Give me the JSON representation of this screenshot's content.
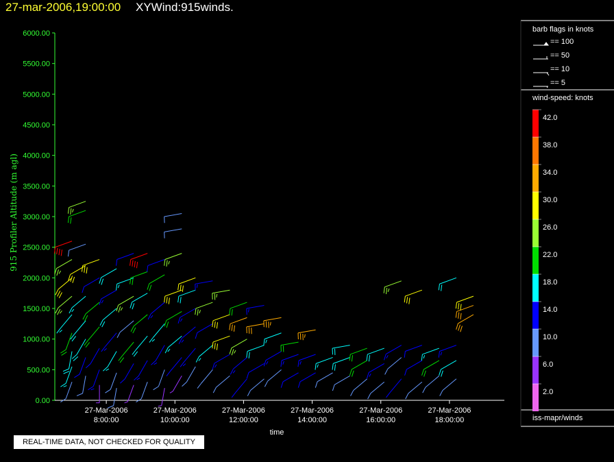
{
  "header": {
    "datetime": "27-mar-2006,19:00:00",
    "product": "XYWind:915winds."
  },
  "notice": "REAL-TIME DATA, NOT CHECKED FOR QUALITY",
  "legend": {
    "barb_title": "barb flags in knots",
    "barb_items": [
      "== 100",
      "== 50",
      "== 10",
      "== 5"
    ],
    "colorbar_title": "wind-speed: knots",
    "colorbar_labels": [
      "42.0",
      "38.0",
      "34.0",
      "30.0",
      "26.0",
      "22.0",
      "18.0",
      "14.0",
      "10.0",
      "6.0",
      "2.0"
    ],
    "colorbar_colors": [
      "#ff0000",
      "#ff7700",
      "#ffaa00",
      "#ffff00",
      "#99ff33",
      "#00dd00",
      "#00ffff",
      "#0000ff",
      "#6699ff",
      "#9933ff",
      "#ee66ee"
    ],
    "source": "iss-mapr/winds"
  },
  "chart_data": {
    "type": "scatter",
    "ylabel": "915 Profiler Altitude (m agl)",
    "xlabel": "time",
    "ylim": [
      0,
      6000
    ],
    "xlim": [
      6.5,
      19.6
    ],
    "yticks": [
      "0.00",
      "500.00",
      "1000.00",
      "1500.00",
      "2000.00",
      "2500.00",
      "3000.00",
      "3500.00",
      "4000.00",
      "4500.00",
      "5000.00",
      "5500.00",
      "6000.00"
    ],
    "xticks": [
      {
        "x": 8,
        "date": "27-Mar-2006",
        "time": "8:00:00"
      },
      {
        "x": 10,
        "date": "27-Mar-2006",
        "time": "10:00:00"
      },
      {
        "x": 12,
        "date": "27-Mar-2006",
        "time": "12:00:00"
      },
      {
        "x": 14,
        "date": "27-Mar-2006",
        "time": "14:00:00"
      },
      {
        "x": 16,
        "date": "27-Mar-2006",
        "time": "16:00:00"
      },
      {
        "x": 18,
        "date": "27-Mar-2006",
        "time": "18:00:00"
      }
    ],
    "profiles": [
      {
        "time": 7.0,
        "obs": [
          [
            300,
            10,
            200
          ],
          [
            550,
            16,
            200
          ],
          [
            800,
            18,
            190
          ],
          [
            1100,
            20,
            200
          ],
          [
            1400,
            16,
            220
          ],
          [
            1700,
            24,
            230
          ],
          [
            2000,
            30,
            230
          ],
          [
            2300,
            26,
            240
          ],
          [
            2600,
            40,
            250
          ]
        ]
      },
      {
        "time": 7.4,
        "obs": [
          [
            400,
            8,
            190
          ],
          [
            700,
            12,
            200
          ],
          [
            1000,
            18,
            210
          ],
          [
            1300,
            18,
            220
          ],
          [
            1700,
            16,
            230
          ],
          [
            2200,
            28,
            240
          ],
          [
            2550,
            10,
            250
          ],
          [
            3100,
            22,
            250
          ],
          [
            3250,
            24,
            250
          ]
        ]
      },
      {
        "time": 7.8,
        "obs": [
          [
            250,
            6,
            180
          ],
          [
            500,
            14,
            200
          ],
          [
            850,
            12,
            210
          ],
          [
            1200,
            20,
            220
          ],
          [
            1600,
            20,
            230
          ],
          [
            2000,
            12,
            240
          ],
          [
            2300,
            28,
            250
          ]
        ]
      },
      {
        "time": 8.3,
        "obs": [
          [
            200,
            8,
            190
          ],
          [
            450,
            10,
            200
          ],
          [
            800,
            16,
            210
          ],
          [
            1100,
            14,
            220
          ],
          [
            1500,
            18,
            230
          ],
          [
            1800,
            14,
            240
          ],
          [
            2150,
            18,
            240
          ]
        ]
      },
      {
        "time": 8.8,
        "obs": [
          [
            250,
            6,
            200
          ],
          [
            600,
            12,
            210
          ],
          [
            950,
            20,
            220
          ],
          [
            1300,
            10,
            230
          ],
          [
            1700,
            24,
            240
          ],
          [
            2000,
            16,
            250
          ],
          [
            2400,
            12,
            250
          ]
        ]
      },
      {
        "time": 9.2,
        "obs": [
          [
            300,
            8,
            200
          ],
          [
            650,
            14,
            210
          ],
          [
            1050,
            18,
            220
          ],
          [
            1400,
            22,
            230
          ],
          [
            1750,
            18,
            240
          ],
          [
            2100,
            20,
            250
          ],
          [
            2400,
            40,
            250
          ]
        ]
      },
      {
        "time": 9.7,
        "obs": [
          [
            200,
            6,
            190
          ],
          [
            500,
            10,
            200
          ],
          [
            900,
            14,
            210
          ],
          [
            1250,
            16,
            220
          ],
          [
            1600,
            14,
            230
          ],
          [
            2050,
            22,
            240
          ],
          [
            2300,
            12,
            250
          ]
        ]
      },
      {
        "time": 10.2,
        "obs": [
          [
            400,
            6,
            210
          ],
          [
            700,
            12,
            220
          ],
          [
            1050,
            16,
            230
          ],
          [
            1450,
            20,
            240
          ],
          [
            1800,
            28,
            250
          ],
          [
            2400,
            26,
            250
          ],
          [
            2800,
            8,
            260
          ],
          [
            3050,
            8,
            260
          ]
        ]
      },
      {
        "time": 10.6,
        "obs": [
          [
            550,
            8,
            210
          ],
          [
            850,
            14,
            220
          ],
          [
            1200,
            14,
            230
          ],
          [
            1500,
            14,
            240
          ],
          [
            1800,
            18,
            250
          ],
          [
            2000,
            30,
            250
          ]
        ]
      },
      {
        "time": 11.1,
        "obs": [
          [
            500,
            10,
            220
          ],
          [
            900,
            16,
            230
          ],
          [
            1250,
            12,
            240
          ],
          [
            1600,
            24,
            250
          ],
          [
            1950,
            14,
            260
          ]
        ]
      },
      {
        "time": 11.6,
        "obs": [
          [
            400,
            10,
            230
          ],
          [
            750,
            14,
            240
          ],
          [
            1050,
            30,
            250
          ],
          [
            1400,
            30,
            250
          ],
          [
            1800,
            24,
            260
          ]
        ]
      },
      {
        "time": 12.1,
        "obs": [
          [
            350,
            12,
            220
          ],
          [
            700,
            14,
            230
          ],
          [
            1000,
            26,
            240
          ],
          [
            1350,
            32,
            250
          ],
          [
            1600,
            20,
            250
          ]
        ]
      },
      {
        "time": 12.6,
        "obs": [
          [
            350,
            8,
            230
          ],
          [
            600,
            12,
            240
          ],
          [
            900,
            18,
            250
          ],
          [
            1250,
            32,
            260
          ],
          [
            1550,
            14,
            260
          ]
        ]
      },
      {
        "time": 13.1,
        "obs": [
          [
            500,
            8,
            230
          ],
          [
            800,
            14,
            240
          ],
          [
            1100,
            16,
            250
          ],
          [
            1350,
            34,
            260
          ]
        ]
      },
      {
        "time": 13.6,
        "obs": [
          [
            450,
            12,
            240
          ],
          [
            750,
            14,
            250
          ],
          [
            950,
            22,
            260
          ]
        ]
      },
      {
        "time": 14.1,
        "obs": [
          [
            450,
            12,
            240
          ],
          [
            750,
            14,
            250
          ],
          [
            1150,
            34,
            260
          ]
        ]
      },
      {
        "time": 14.6,
        "obs": [
          [
            450,
            8,
            240
          ],
          [
            700,
            16,
            250
          ]
        ]
      },
      {
        "time": 15.1,
        "obs": [
          [
            400,
            10,
            240
          ],
          [
            700,
            18,
            250
          ],
          [
            900,
            18,
            260
          ]
        ]
      },
      {
        "time": 15.6,
        "obs": [
          [
            350,
            10,
            230
          ],
          [
            650,
            22,
            240
          ],
          [
            850,
            22,
            250
          ]
        ]
      },
      {
        "time": 16.1,
        "obs": [
          [
            300,
            8,
            230
          ],
          [
            600,
            14,
            240
          ],
          [
            850,
            18,
            250
          ]
        ]
      },
      {
        "time": 16.6,
        "obs": [
          [
            350,
            12,
            220
          ],
          [
            700,
            10,
            230
          ],
          [
            900,
            14,
            240
          ],
          [
            1950,
            24,
            250
          ]
        ]
      },
      {
        "time": 17.2,
        "obs": [
          [
            300,
            8,
            230
          ],
          [
            650,
            12,
            240
          ],
          [
            900,
            12,
            250
          ],
          [
            1800,
            30,
            250
          ]
        ]
      },
      {
        "time": 17.7,
        "obs": [
          [
            400,
            8,
            230
          ],
          [
            650,
            20,
            240
          ],
          [
            850,
            16,
            250
          ]
        ]
      },
      {
        "time": 18.2,
        "obs": [
          [
            350,
            10,
            230
          ],
          [
            650,
            18,
            240
          ],
          [
            900,
            14,
            250
          ],
          [
            2000,
            18,
            250
          ]
        ]
      },
      {
        "time": 18.7,
        "obs": [
          [
            1400,
            32,
            240
          ],
          [
            1550,
            32,
            250
          ],
          [
            1700,
            30,
            250
          ]
        ]
      }
    ]
  }
}
